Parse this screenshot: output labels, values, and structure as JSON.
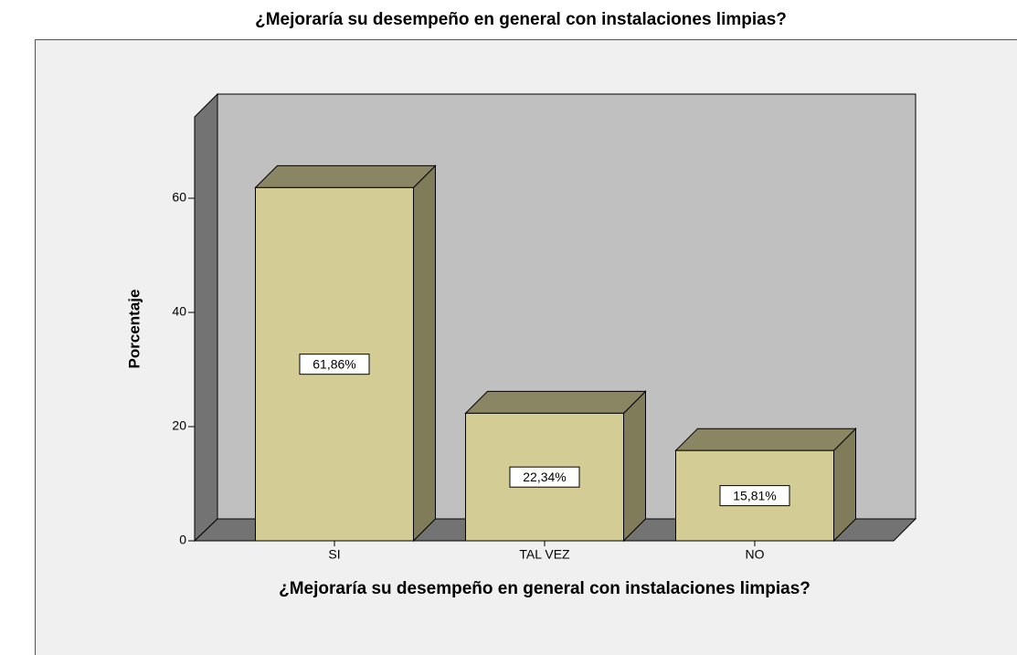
{
  "chart_data": {
    "type": "bar3d",
    "title": "¿Mejoraría su desempeño en general con instalaciones limpias?",
    "xlabel": "¿Mejoraría su desempeño en general con instalaciones limpias?",
    "ylabel": "Porcentaje",
    "categories": [
      "SI",
      "TAL VEZ",
      "NO"
    ],
    "values": [
      61.86,
      22.34,
      15.81
    ],
    "value_labels": [
      "61,86%",
      "22,34%",
      "15,81%"
    ],
    "color": "#d3cd95",
    "ylim": [
      0,
      74
    ],
    "yticks": [
      0,
      20,
      40,
      60
    ]
  }
}
